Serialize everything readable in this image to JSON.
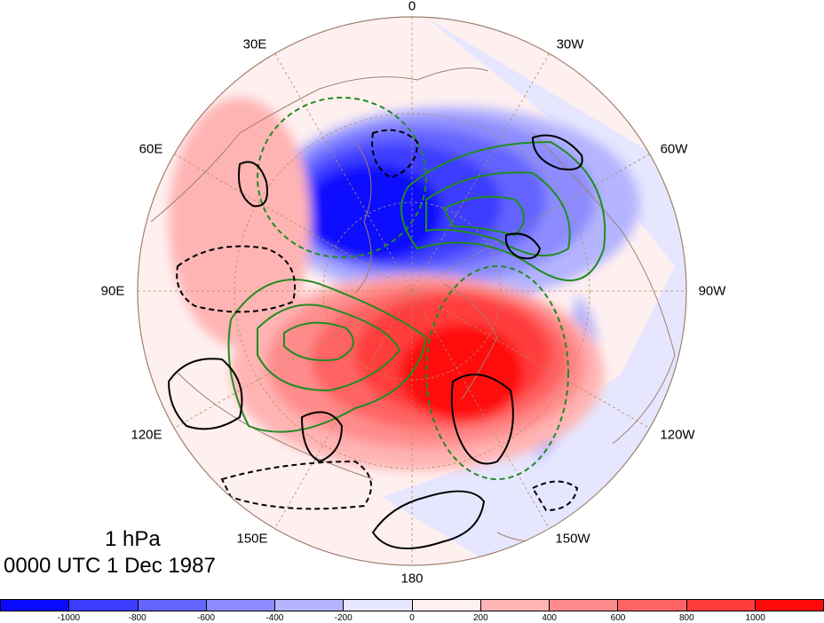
{
  "map": {
    "longitude_labels": [
      {
        "text": "0",
        "key": "lon0"
      },
      {
        "text": "30W",
        "key": "lon30w"
      },
      {
        "text": "60W",
        "key": "lon60w"
      },
      {
        "text": "90W",
        "key": "lon90w"
      },
      {
        "text": "120W",
        "key": "lon120w"
      },
      {
        "text": "150W",
        "key": "lon150w"
      },
      {
        "text": "180",
        "key": "lon180"
      },
      {
        "text": "150E",
        "key": "lon150e"
      },
      {
        "text": "120E",
        "key": "lon120e"
      },
      {
        "text": "90E",
        "key": "lon90e"
      },
      {
        "text": "60E",
        "key": "lon60e"
      },
      {
        "text": "30E",
        "key": "lon30e"
      }
    ],
    "level_text": "1 hPa",
    "time_text": "0000 UTC 1 Dec 1987",
    "colors": {
      "strong_negative": "#0a0aff",
      "strong_positive": "#ff0a0a",
      "green_contour": "#228b22",
      "black_contour": "#000000",
      "coastline": "#a08070"
    }
  },
  "colorbar": {
    "colors": [
      "#0a0aff",
      "#3c3cff",
      "#6464ff",
      "#8c8cff",
      "#b4b4ff",
      "#e6e6ff",
      "#fff0f0",
      "#ffb4b4",
      "#ff8c8c",
      "#ff6464",
      "#ff3c3c",
      "#ff0a0a"
    ],
    "tick_labels": [
      "-1000",
      "-800",
      "-600",
      "-400",
      "-200",
      "0",
      "200",
      "400",
      "600",
      "800",
      "1000"
    ]
  }
}
